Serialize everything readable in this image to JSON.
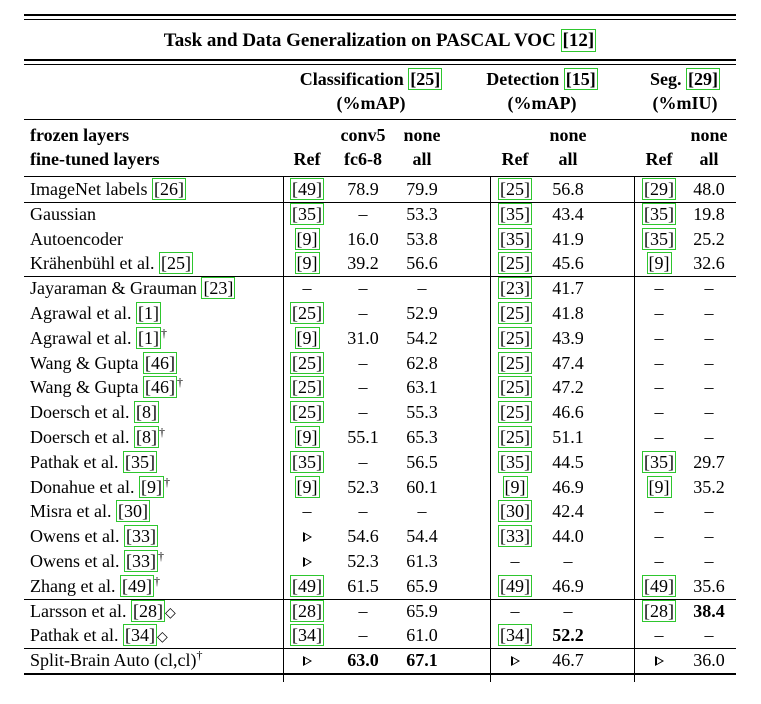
{
  "caption": {
    "text": "Task and Data Generalization on PASCAL VOC ",
    "ref": "[12]"
  },
  "groups": {
    "classification": {
      "name": "Classification ",
      "ref": "[25]",
      "unit": "(%mAP)"
    },
    "detection": {
      "name": "Detection ",
      "ref": "[15]",
      "unit": "(%mAP)"
    },
    "segmentation": {
      "name": "Seg. ",
      "ref": "[29]",
      "unit": "(%mIU)"
    }
  },
  "header": {
    "frozen_label": "frozen layers",
    "finetuned_label": "fine-tuned layers",
    "ref": "Ref",
    "conv5": "conv5",
    "fc68": "fc6-8",
    "none": "none",
    "all": "all"
  },
  "rows": [
    {
      "method": "ImageNet labels ",
      "mref": "[26]",
      "dag": "",
      "cref": "[49]",
      "c1": "78.9",
      "c2": "79.9",
      "dref": "[25]",
      "d": "56.8",
      "sref": "[29]",
      "s": "48.0"
    },
    {
      "method": "Gaussian",
      "mref": "",
      "dag": "",
      "cref": "[35]",
      "c1": "–",
      "c2": "53.3",
      "dref": "[35]",
      "d": "43.4",
      "sref": "[35]",
      "s": "19.8"
    },
    {
      "method": "Autoencoder",
      "mref": "",
      "dag": "",
      "cref": "[9]",
      "c1": "16.0",
      "c2": "53.8",
      "dref": "[35]",
      "d": "41.9",
      "sref": "[35]",
      "s": "25.2"
    },
    {
      "method": "Krähenbühl et al. ",
      "mref": "[25]",
      "dag": "",
      "cref": "[9]",
      "c1": "39.2",
      "c2": "56.6",
      "dref": "[25]",
      "d": "45.6",
      "sref": "[9]",
      "s": "32.6"
    },
    {
      "method": "Jayaraman & Grauman ",
      "mref": "[23]",
      "dag": "",
      "cref": "–",
      "c1": "–",
      "c2": "–",
      "dref": "[23]",
      "d": "41.7",
      "sref": "–",
      "s": "–"
    },
    {
      "method": "Agrawal et al. ",
      "mref": "[1]",
      "dag": "",
      "cref": "[25]",
      "c1": "–",
      "c2": "52.9",
      "dref": "[25]",
      "d": "41.8",
      "sref": "–",
      "s": "–"
    },
    {
      "method": "Agrawal et al. ",
      "mref": "[1]",
      "dag": "†",
      "cref": "[9]",
      "c1": "31.0",
      "c2": "54.2",
      "dref": "[25]",
      "d": "43.9",
      "sref": "–",
      "s": "–"
    },
    {
      "method": "Wang & Gupta ",
      "mref": "[46]",
      "dag": "",
      "cref": "[25]",
      "c1": "–",
      "c2": "62.8",
      "dref": "[25]",
      "d": "47.4",
      "sref": "–",
      "s": "–"
    },
    {
      "method": "Wang & Gupta ",
      "mref": "[46]",
      "dag": "†",
      "cref": "[25]",
      "c1": "–",
      "c2": "63.1",
      "dref": "[25]",
      "d": "47.2",
      "sref": "–",
      "s": "–"
    },
    {
      "method": "Doersch et al. ",
      "mref": "[8]",
      "dag": "",
      "cref": "[25]",
      "c1": "–",
      "c2": "55.3",
      "dref": "[25]",
      "d": "46.6",
      "sref": "–",
      "s": "–"
    },
    {
      "method": "Doersch et al. ",
      "mref": "[8]",
      "dag": "†",
      "cref": "[9]",
      "c1": "55.1",
      "c2": "65.3",
      "dref": "[25]",
      "d": "51.1",
      "sref": "–",
      "s": "–"
    },
    {
      "method": "Pathak et al. ",
      "mref": "[35]",
      "dag": "",
      "cref": "[35]",
      "c1": "–",
      "c2": "56.5",
      "dref": "[35]",
      "d": "44.5",
      "sref": "[35]",
      "s": "29.7"
    },
    {
      "method": "Donahue et al. ",
      "mref": "[9]",
      "dag": "†",
      "cref": "[9]",
      "c1": "52.3",
      "c2": "60.1",
      "dref": "[9]",
      "d": "46.9",
      "sref": "[9]",
      "s": "35.2"
    },
    {
      "method": "Misra et al. ",
      "mref": "[30]",
      "dag": "",
      "cref": "–",
      "c1": "–",
      "c2": "–",
      "dref": "[30]",
      "d": "42.4",
      "sref": "–",
      "s": "–"
    },
    {
      "method": "Owens et al. ",
      "mref": "[33]",
      "dag": "",
      "cref": "▷",
      "c1": "54.6",
      "c2": "54.4",
      "dref": "[33]",
      "d": "44.0",
      "sref": "–",
      "s": "–"
    },
    {
      "method": "Owens et al. ",
      "mref": "[33]",
      "dag": "†",
      "cref": "▷",
      "c1": "52.3",
      "c2": "61.3",
      "dref": "–",
      "d": "–",
      "sref": "–",
      "s": "–"
    },
    {
      "method": "Zhang et al. ",
      "mref": "[49]",
      "dag": "†",
      "cref": "[49]",
      "c1": "61.5",
      "c2": "65.9",
      "dref": "[49]",
      "d": "46.9",
      "sref": "[49]",
      "s": "35.6"
    },
    {
      "method": "Larsson et al. ",
      "mref": "[28]",
      "dag": "◇",
      "cref": "[28]",
      "c1": "–",
      "c2": "65.9",
      "dref": "–",
      "d": "–",
      "sref": "[28]",
      "s": "38.4",
      "sbold": true
    },
    {
      "method": "Pathak et al. ",
      "mref": "[34]",
      "dag": "◇",
      "cref": "[34]",
      "c1": "–",
      "c2": "61.0",
      "dref": "[34]",
      "d": "52.2",
      "dbold": true,
      "sref": "–",
      "s": "–"
    },
    {
      "method": "Split-Brain Auto (cl,cl)",
      "mref": "",
      "dag": "†",
      "cref": "▷",
      "c1": "63.0",
      "c1bold": true,
      "c2": "67.1",
      "c2bold": true,
      "dref": "▷",
      "d": "46.7",
      "sref": "▷",
      "s": "36.0"
    }
  ],
  "colors": {
    "citation_box": "#2ec62e",
    "text": "#000000"
  }
}
